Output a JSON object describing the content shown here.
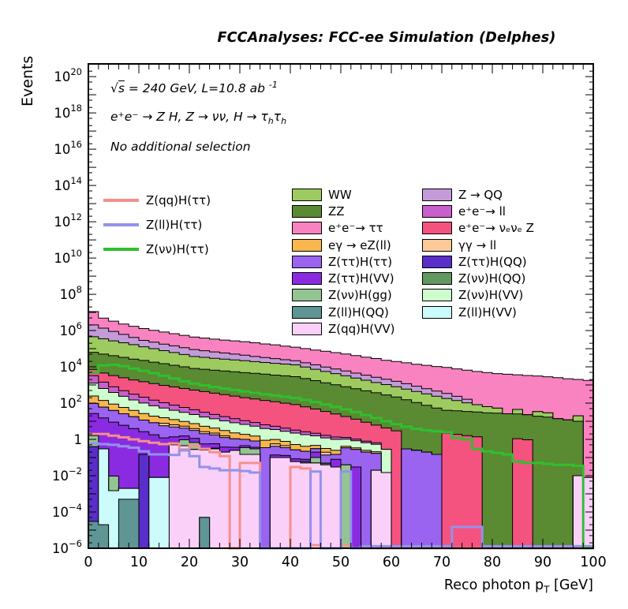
{
  "title": "FCCAnalyses: FCC-ee Simulation (Delphes)",
  "annotations": {
    "line1": {
      "sqrt": "√",
      "s": "s",
      "main": " = 240 GeV, L=10.8 ab ",
      "sup": "-1"
    },
    "line2": {
      "main": "e⁺e⁻ → Z H, Z  → νν, H → τ",
      "sub1": "h",
      "tau2": "τ",
      "sub2": "h"
    },
    "line3": "No additional selection"
  },
  "axes": {
    "y_title": "Events",
    "x_title_pre": "Reco photon p",
    "x_title_sub": "T",
    "x_title_post": " [GeV]",
    "x_tick_values": [
      0,
      10,
      20,
      30,
      40,
      50,
      60,
      70,
      80,
      90,
      100
    ],
    "y_tick_exponents": [
      -6,
      -4,
      -2,
      0,
      2,
      4,
      6,
      8,
      10,
      12,
      14,
      16,
      18,
      20
    ]
  },
  "signal_legend": [
    {
      "label": "Z(qq)H(ττ)",
      "color": "#F5908B"
    },
    {
      "label": "Z(ll)H(ττ)",
      "color": "#9292EB"
    },
    {
      "label": "Z(νν)H(ττ)",
      "color": "#2FBF2F"
    }
  ],
  "legend_left": [
    {
      "label": "WW",
      "color": "#9DCB60"
    },
    {
      "label": "ZZ",
      "color": "#5A8A32"
    },
    {
      "label": "e⁺e⁻→ ττ",
      "color": "#F983C1"
    },
    {
      "label": "eγ → eZ(ll)",
      "color": "#F8B64F"
    },
    {
      "label": "Z(ττ)H(ττ)",
      "color": "#9A63F0"
    },
    {
      "label": "Z(ττ)H(VV)",
      "color": "#8A2BE2"
    },
    {
      "label": "Z(νν)H(gg)",
      "color": "#95C493"
    },
    {
      "label": "Z(ll)H(QQ)",
      "color": "#5F9595"
    },
    {
      "label": "Z(qq)H(VV)",
      "color": "#FAD0F8"
    }
  ],
  "legend_right": [
    {
      "label": "Z → QQ",
      "color": "#C49BD9"
    },
    {
      "label": "e⁺e⁻→ ll",
      "color": "#C95FCC"
    },
    {
      "label": "e⁺e⁻→ νₑνₑ Z",
      "color": "#F4537F"
    },
    {
      "label": "γγ → ll",
      "color": "#FBCA97"
    },
    {
      "label": "Z(ττ)H(QQ)",
      "color": "#5A2EC8"
    },
    {
      "label": "Z(νν)H(QQ)",
      "color": "#62985F"
    },
    {
      "label": "Z(νν)H(VV)",
      "color": "#CEFDCE"
    },
    {
      "label": "Z(ll)H(VV)",
      "color": "#CBFBFB"
    }
  ],
  "chart_data": {
    "type": "bar",
    "subtype": "stacked-step-histogram-logy",
    "title": "FCCAnalyses: FCC-ee Simulation (Delphes)",
    "xlabel": "Reco photon pT [GeV]",
    "ylabel": "Events",
    "x_range": [
      0,
      100
    ],
    "bin_width": 2,
    "n_bins": 50,
    "y_log_range_exp": [
      -6,
      20.7
    ],
    "grid": false,
    "legend_position": "top-center-two-columns",
    "series": [
      {
        "name": "Z(ll)H(QQ)",
        "color": "#5F9595",
        "values": [
          3e-05,
          2e-05,
          0,
          0.0005,
          0.0005,
          0,
          0,
          0,
          0,
          0,
          0,
          5e-05,
          0,
          0,
          0,
          0,
          0,
          0,
          0,
          0,
          0,
          0,
          0,
          0,
          0,
          0,
          0,
          0,
          0,
          0,
          0,
          0,
          0,
          0,
          0,
          0,
          0,
          0,
          0,
          0,
          0,
          0,
          0,
          0,
          0,
          0,
          0,
          0,
          0,
          0
        ]
      },
      {
        "name": "Z(ll)H(VV)",
        "color": "#CBFBFB",
        "values": [
          0,
          0.3,
          0.0015,
          0.0015,
          0.0015,
          0,
          0.008,
          0.008,
          0,
          0,
          0,
          0,
          0,
          0,
          0,
          0,
          0,
          0,
          0,
          0,
          0,
          0,
          0,
          0,
          0,
          0,
          0,
          0,
          0,
          0,
          0,
          0,
          0,
          0,
          0,
          0,
          0,
          0,
          0,
          0,
          0,
          0,
          0,
          0,
          0,
          0,
          0,
          0,
          0,
          0
        ]
      },
      {
        "name": "Z(qq)H(VV)",
        "color": "#FAD0F8",
        "values": [
          0,
          0,
          0,
          0,
          0,
          0,
          0,
          0,
          0.5,
          0.45,
          0.28,
          0.26,
          0.3,
          0.2,
          0.25,
          0.15,
          0.15,
          0,
          0.1,
          0.1,
          0.06,
          0.05,
          0.05,
          0.04,
          0.03,
          0,
          0,
          0,
          0.02,
          0.015,
          0,
          0,
          0,
          0,
          0,
          0,
          0,
          0,
          0,
          0,
          0,
          0,
          0,
          0,
          0,
          0,
          0,
          0,
          0.01,
          0.008
        ]
      },
      {
        "name": "Z(ττ)H(QQ)",
        "color": "#5A2EC8",
        "values": [
          0.4,
          0,
          0,
          0,
          0,
          0.15,
          0,
          0,
          0,
          0,
          0,
          0,
          0.03,
          0,
          0,
          0,
          0,
          0,
          0,
          0,
          0,
          0,
          0,
          0,
          0,
          0,
          0,
          0,
          0,
          0,
          0,
          0,
          0,
          0,
          0,
          0,
          0,
          0,
          0,
          0,
          0,
          0,
          0,
          0,
          0,
          0,
          0,
          0,
          0,
          0
        ]
      },
      {
        "name": "Z(νν)H(QQ)",
        "color": "#62985F",
        "values": [
          0,
          0,
          0,
          0,
          0,
          0,
          0,
          0,
          0,
          0,
          0,
          0,
          0,
          0,
          0,
          0,
          0,
          0,
          0,
          0,
          0,
          0.01,
          0,
          0.008,
          0,
          0,
          0,
          0,
          0,
          0,
          0,
          0,
          0,
          0,
          0,
          0,
          0,
          0,
          0,
          0,
          0,
          0,
          0,
          0,
          0,
          0,
          0,
          0,
          0,
          0
        ]
      },
      {
        "name": "Z(νν)H(gg)",
        "color": "#95C493",
        "values": [
          1.2,
          0,
          0.008,
          0,
          0,
          0,
          0,
          0,
          0,
          0.5,
          0.4,
          0,
          0,
          0,
          0,
          0.2,
          0.15,
          0,
          0,
          0,
          0,
          0,
          0.05,
          0,
          0,
          0.04,
          0,
          0,
          0,
          0,
          0,
          0,
          0,
          0,
          0,
          0,
          0,
          0,
          0,
          0,
          0,
          0,
          0,
          0,
          0,
          0,
          0,
          0,
          0,
          0
        ]
      },
      {
        "name": "Z(ττ)H(VV)",
        "color": "#8A2BE2",
        "values": [
          25,
          15,
          9,
          6,
          4,
          2.5,
          1.8,
          1.2,
          0.9,
          0.6,
          0.45,
          0.3,
          0.25,
          0.18,
          0.12,
          0.1,
          0.07,
          0,
          0.04,
          0.03,
          0.025,
          0.02,
          0.1,
          0,
          0.05,
          0,
          0.03,
          0,
          0,
          0,
          0,
          0,
          0,
          0,
          0,
          0,
          0,
          0,
          0,
          0,
          0,
          0,
          0,
          0,
          0,
          0,
          0,
          0,
          0,
          0
        ]
      },
      {
        "name": "Z(ττ)H(ττ)",
        "color": "#9A63F0",
        "values": [
          70,
          45,
          30,
          20,
          14,
          9,
          6.5,
          4.5,
          3.5,
          2.6,
          2.0,
          1.5,
          1.2,
          0.9,
          0.7,
          0.55,
          0.45,
          0.35,
          0.28,
          0.22,
          0.18,
          0.14,
          0.11,
          0.09,
          0.07,
          0.3,
          0.25,
          0.2,
          0.15,
          0,
          0,
          0.3,
          0.25,
          0.2,
          0.15,
          0,
          0,
          0,
          0,
          0,
          0,
          0,
          0,
          0,
          0,
          0,
          0,
          0,
          0,
          0
        ]
      },
      {
        "name": "γγ → ll",
        "color": "#FBCA97",
        "values": [
          0,
          0,
          0,
          0,
          0,
          0,
          0,
          2,
          1.5,
          1.2,
          0.8,
          0.6,
          0.45,
          0.3,
          0,
          0,
          0,
          0,
          0.15,
          0.1,
          0,
          0,
          0,
          0.06,
          0,
          0,
          0,
          0,
          0,
          0,
          0,
          0,
          0,
          0,
          0,
          0,
          0,
          0,
          0,
          0,
          0,
          0,
          0,
          0,
          0,
          0,
          0,
          0,
          0,
          0
        ]
      },
      {
        "name": "eγ → eZ(ll)",
        "color": "#F8B64F",
        "values": [
          150,
          80,
          50,
          32,
          22,
          15,
          11,
          8,
          6,
          4.5,
          3.5,
          2.6,
          2,
          1.5,
          1.2,
          0.9,
          0.7,
          0.55,
          0.42,
          0.33,
          0.26,
          0.2,
          0.16,
          0.12,
          0.1,
          0.08,
          0.06,
          0.05,
          0.04,
          0,
          0,
          0,
          0,
          0,
          0,
          0,
          0,
          0,
          0,
          0,
          0,
          0,
          0,
          0,
          0,
          0,
          0,
          0,
          0,
          0
        ]
      },
      {
        "name": "Z(νν)H(VV)",
        "color": "#CEFDCE",
        "values": [
          1000,
          500,
          300,
          180,
          110,
          75,
          52,
          38,
          28,
          21,
          16,
          12,
          9.5,
          7.5,
          6,
          4.8,
          3.8,
          3.1,
          2.5,
          2,
          1.7,
          1.4,
          1.1,
          0.9,
          0.75,
          0.6,
          0.5,
          0.4,
          0.33,
          0.27,
          0,
          0,
          0,
          0,
          0,
          0,
          0,
          0,
          0,
          0,
          0,
          0,
          0,
          0,
          0,
          0,
          0,
          0,
          0,
          0
        ]
      },
      {
        "name": "e⁺e⁻→ ll",
        "color": "#C95FCC",
        "values": [
          2000,
          800,
          400,
          250,
          160,
          110,
          75,
          52,
          37,
          27,
          20,
          14,
          10,
          7.5,
          5.5,
          4.2,
          3.2,
          2.4,
          1.8,
          1.4,
          1.0,
          0.8,
          0.6,
          0.45,
          0.35,
          0.27,
          0.2,
          0.15,
          0.12,
          0,
          0,
          0,
          0,
          0,
          0,
          0,
          0,
          0,
          0,
          0,
          0,
          0,
          0,
          0,
          0,
          0,
          0,
          0,
          0,
          0
        ]
      },
      {
        "name": "e⁺e⁻→ νₑνₑ Z",
        "color": "#F4537F",
        "values": [
          4000,
          3100,
          2500,
          2000,
          1600,
          1300,
          1050,
          850,
          700,
          580,
          480,
          400,
          330,
          275,
          230,
          190,
          160,
          135,
          115,
          95,
          80,
          60,
          45,
          33,
          24,
          17,
          12,
          8,
          5.5,
          4,
          3,
          0,
          0,
          0,
          0,
          2.2,
          1.9,
          1.6,
          1.4,
          0,
          0,
          0,
          1.1,
          0.95,
          0,
          0,
          0,
          0,
          0,
          0
        ]
      },
      {
        "name": "ZZ",
        "color": "#5A8A32",
        "values": [
          56000,
          46000,
          38000,
          31000,
          25000,
          21000,
          17000,
          14000,
          11500,
          9400,
          7600,
          6900,
          6200,
          5600,
          5100,
          4600,
          4200,
          3800,
          3400,
          3100,
          2800,
          2200,
          1700,
          1300,
          1000,
          790,
          610,
          470,
          365,
          280,
          215,
          152,
          107,
          76,
          54,
          38,
          36,
          33,
          31,
          29,
          28,
          26,
          24,
          22,
          19,
          17,
          14,
          12,
          10,
          0
        ]
      },
      {
        "name": "WW",
        "color": "#9DCB60",
        "values": [
          390000,
          300000,
          230000,
          180000,
          140000,
          105000,
          82000,
          63000,
          49000,
          38000,
          29000,
          26000,
          23000,
          21000,
          19000,
          17000,
          15000,
          13500,
          12000,
          11000,
          10000,
          7500,
          5600,
          4200,
          3200,
          2400,
          1800,
          1350,
          1000,
          770,
          580,
          440,
          330,
          250,
          185,
          140,
          100,
          70,
          50,
          35,
          25,
          0,
          20,
          0,
          15,
          12,
          0,
          0,
          10,
          0
        ]
      },
      {
        "name": "Z → QQ",
        "color": "#C49BD9",
        "values": [
          1600000,
          1000000,
          630000,
          400000,
          250000,
          160000,
          128000,
          102000,
          82000,
          66000,
          53000,
          44000,
          37000,
          31000,
          26000,
          22000,
          18000,
          15000,
          13000,
          10500,
          9000,
          7000,
          5500,
          4300,
          3400,
          2700,
          2100,
          1650,
          1300,
          1000,
          800,
          580,
          420,
          300,
          220,
          160,
          100,
          60,
          0,
          0,
          0,
          0,
          0,
          0,
          0,
          0,
          0,
          0,
          0,
          0
        ]
      },
      {
        "name": "e⁺e⁻→ ττ",
        "color": "#F983C1",
        "values": [
          9000000,
          3500000,
          2400000,
          1700000,
          1300000,
          1000000,
          800000,
          650000,
          530000,
          430000,
          350000,
          310000,
          270000,
          240000,
          220000,
          200000,
          175000,
          150000,
          135000,
          115000,
          100000,
          85000,
          72000,
          62000,
          53000,
          45000,
          37000,
          31000,
          26000,
          21000,
          18000,
          15500,
          13000,
          11500,
          10000,
          8900,
          7500,
          6400,
          5500,
          4800,
          4200,
          3900,
          3600,
          3300,
          3100,
          2800,
          2500,
          2200,
          2000,
          1800
        ]
      }
    ],
    "signal_lines": [
      {
        "name": "Z(qq)H(ττ)",
        "color": "#F5908B",
        "values": [
          2,
          2,
          1.6,
          1.3,
          1,
          0.8,
          0.65,
          0.55,
          0.6,
          0.28,
          0.45,
          0.3,
          0.2,
          0.12,
          0,
          0.05,
          0.05,
          0,
          0,
          0,
          0.03,
          0.025,
          1.5e-06,
          0,
          0,
          1.5e-06,
          1e-06,
          1e-06,
          0,
          0,
          0,
          0,
          0,
          0,
          0,
          0,
          0,
          0,
          0,
          0,
          0,
          0,
          0,
          0,
          0,
          0,
          0,
          0,
          0,
          0
        ]
      },
      {
        "name": "Z(ll)H(ττ)",
        "color": "#9292EB",
        "values": [
          0.6,
          0.55,
          0.5,
          0.42,
          0.35,
          0.22,
          0.15,
          0.15,
          0.14,
          0.25,
          0.12,
          0.03,
          0.025,
          0.02,
          0.02,
          0.018,
          0.015,
          0,
          0,
          0,
          0,
          0,
          0.017,
          0,
          0,
          0.017,
          0,
          1.3e-06,
          1.3e-06,
          1.3e-06,
          1.3e-06,
          1.3e-06,
          1.3e-06,
          1.3e-06,
          1.3e-06,
          1.3e-06,
          1.5e-05,
          1.5e-05,
          1.5e-05,
          1.3e-06,
          1.3e-06,
          1.3e-06,
          1.3e-06,
          1.3e-06,
          1.3e-06,
          1.3e-06,
          1.3e-06,
          1.3e-06,
          1.3e-06,
          1.3e-06
        ]
      },
      {
        "name": "Z(νν)H(ττ)",
        "color": "#2FBF2F",
        "values": [
          5000,
          12000,
          13000,
          11000,
          8000,
          6000,
          4500,
          3200,
          2300,
          1600,
          1200,
          950,
          780,
          640,
          530,
          440,
          370,
          310,
          265,
          225,
          190,
          150,
          115,
          85,
          62,
          45,
          32,
          22,
          15,
          10,
          7,
          5,
          3.8,
          3.2,
          2.8,
          2.5,
          1.2,
          1.0,
          0.3,
          0.22,
          0.18,
          0.15,
          0.06,
          0.05,
          0.05,
          0.045,
          0.04,
          0.04,
          0.035,
          0
        ]
      }
    ]
  }
}
